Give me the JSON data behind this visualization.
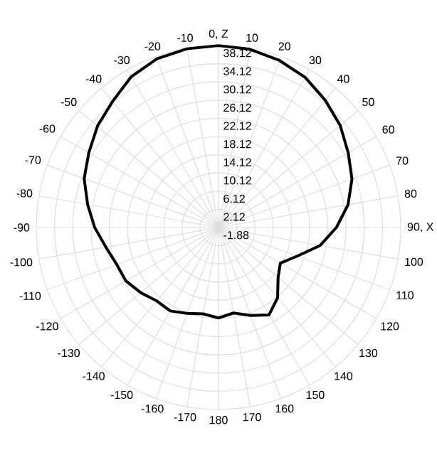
{
  "chart_data": {
    "type": "radar",
    "categories": [
      "0, Z",
      "10",
      "20",
      "30",
      "40",
      "50",
      "60",
      "70",
      "80",
      "90, X",
      "100",
      "110",
      "120",
      "130",
      "140",
      "150",
      "160",
      "170",
      "180",
      "-170",
      "-160",
      "-150",
      "-140",
      "-130",
      "-120",
      "-110",
      "-100",
      "-90",
      "-80",
      "-70",
      "-60",
      "-50",
      "-40",
      "-30",
      "-20",
      "-10"
    ],
    "series": [
      {
        "color": "#000000",
        "values": [
          38.1,
          37.9,
          37.2,
          36.2,
          34.6,
          33.0,
          31.0,
          29.3,
          27.0,
          24.0,
          20.8,
          16.5,
          13.8,
          15.2,
          18.3,
          20.3,
          18.7,
          17.2,
          18.0,
          17.4,
          18.2,
          19.3,
          19.2,
          20.4,
          21.6,
          21.9,
          23.2,
          25.3,
          27.3,
          29.5,
          31.0,
          32.8,
          34.3,
          36.4,
          37.6,
          38.0
        ]
      }
    ],
    "ylim": [
      -1.88,
      38.12
    ],
    "yticks": [
      -1.88,
      2.12,
      6.12,
      10.12,
      14.12,
      18.12,
      22.12,
      26.12,
      30.12,
      34.12,
      38.12
    ],
    "grid": true
  }
}
